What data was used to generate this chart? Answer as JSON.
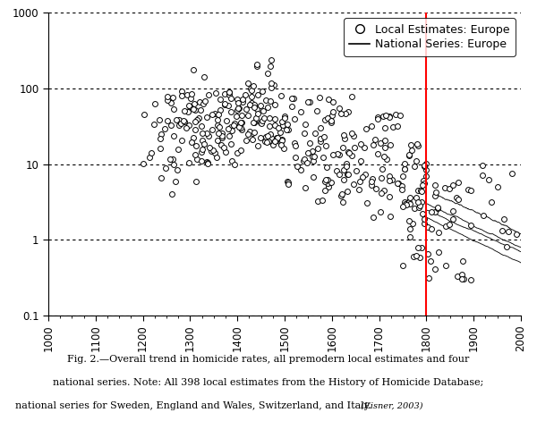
{
  "caption_line1": "Fig. 2.—Overall trend in homicide rates, all premodern local estimates and four",
  "caption_line2": "national series. Note: All 398 local estimates from the History of Homicide Database;",
  "caption_line3": "national series for Sweden, England and Wales, Switzerland, and Italy.",
  "caption_citation": "(Eisner, 2003)",
  "xlim": [
    1000,
    2000
  ],
  "ylim": [
    0.1,
    1000
  ],
  "red_line_x": 1800,
  "scatter_facecolor": "white",
  "scatter_edgecolor": "black",
  "scatter_size": 18,
  "scatter_linewidth": 0.7,
  "legend_label_scatter": "Local Estimates: Europe",
  "legend_label_line": "National Series: Europe",
  "background_color": "white",
  "grid_color": "black",
  "xticks": [
    1000,
    1100,
    1200,
    1300,
    1400,
    1500,
    1600,
    1700,
    1800,
    1900,
    2000
  ],
  "yticks": [
    0.1,
    1,
    10,
    100,
    1000
  ],
  "ytick_labels": [
    "0.1",
    "1",
    "10",
    "100",
    "1000"
  ]
}
